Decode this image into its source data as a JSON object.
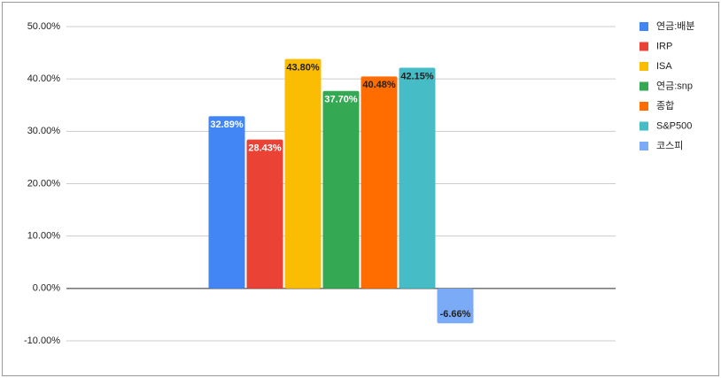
{
  "chart_data": {
    "type": "bar",
    "categories": [
      null
    ],
    "series": [
      {
        "name": "연금:배분",
        "color": "#4285f4",
        "values": [
          32.89
        ],
        "value_labels": [
          "32.89%"
        ]
      },
      {
        "name": "IRP",
        "color": "#ea4335",
        "values": [
          28.43
        ],
        "value_labels": [
          "28.43%"
        ]
      },
      {
        "name": "ISA",
        "color": "#fbbc04",
        "values": [
          43.8
        ],
        "value_labels": [
          "43.80%"
        ]
      },
      {
        "name": "연금:snp",
        "color": "#34a853",
        "values": [
          37.7
        ],
        "value_labels": [
          "37.70%"
        ]
      },
      {
        "name": "종합",
        "color": "#ff6d01",
        "values": [
          40.48
        ],
        "value_labels": [
          "40.48%"
        ]
      },
      {
        "name": "S&P500",
        "color": "#46bdc6",
        "values": [
          42.15
        ],
        "value_labels": [
          "42.15%"
        ]
      },
      {
        "name": "코스피",
        "color": "#7baaf7",
        "values": [
          -6.66
        ],
        "value_labels": [
          "-6.66%"
        ]
      }
    ],
    "ylim": [
      -10,
      50
    ],
    "yticks": [
      {
        "value": -10,
        "label": "-10.00%"
      },
      {
        "value": 0,
        "label": "0.00%"
      },
      {
        "value": 10,
        "label": "10.00%"
      },
      {
        "value": 20,
        "label": "20.00%"
      },
      {
        "value": 30,
        "label": "30.00%"
      },
      {
        "value": 40,
        "label": "40.00%"
      },
      {
        "value": 50,
        "label": "50.00%"
      }
    ],
    "grid": true,
    "legend": "right"
  }
}
